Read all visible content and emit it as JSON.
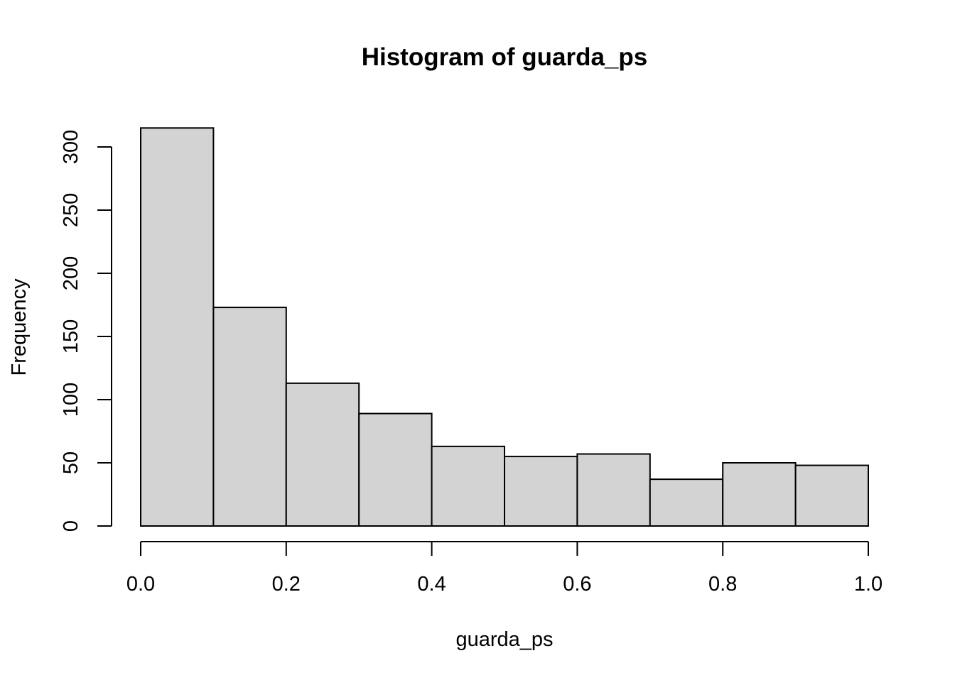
{
  "chart_data": {
    "type": "bar",
    "title": "Histogram of guarda_ps",
    "xlabel": "guarda_ps",
    "ylabel": "Frequency",
    "bins": [
      {
        "x0": 0.0,
        "x1": 0.1,
        "count": 315
      },
      {
        "x0": 0.1,
        "x1": 0.2,
        "count": 173
      },
      {
        "x0": 0.2,
        "x1": 0.3,
        "count": 113
      },
      {
        "x0": 0.3,
        "x1": 0.4,
        "count": 89
      },
      {
        "x0": 0.4,
        "x1": 0.5,
        "count": 63
      },
      {
        "x0": 0.5,
        "x1": 0.6,
        "count": 55
      },
      {
        "x0": 0.6,
        "x1": 0.7,
        "count": 57
      },
      {
        "x0": 0.7,
        "x1": 0.8,
        "count": 37
      },
      {
        "x0": 0.8,
        "x1": 0.9,
        "count": 50
      },
      {
        "x0": 0.9,
        "x1": 1.0,
        "count": 48
      }
    ],
    "xlim": [
      0,
      1
    ],
    "ylim": [
      0,
      300
    ],
    "x_ticks": [
      0,
      0.2,
      0.4,
      0.6,
      0.8,
      1
    ],
    "x_tick_labels": [
      "0.0",
      "0.2",
      "0.4",
      "0.6",
      "0.8",
      "1.0"
    ],
    "y_ticks": [
      0,
      50,
      100,
      150,
      200,
      250,
      300
    ],
    "y_tick_labels": [
      "0",
      "50",
      "100",
      "150",
      "200",
      "250",
      "300"
    ],
    "bar_fill": "#d3d3d3",
    "bar_stroke": "#000000",
    "grid": false,
    "legend": "none"
  }
}
